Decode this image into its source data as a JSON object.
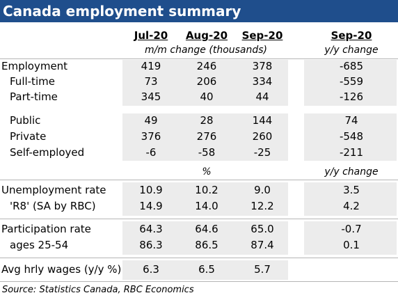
{
  "title": "Canada employment summary",
  "months": [
    "Jul-20",
    "Aug-20",
    "Sep-20"
  ],
  "yoy_month": "Sep-20",
  "mm_caption": "m/m change (thousands)",
  "yoy_caption": "y/y change",
  "pct_caption": "%",
  "yoy_caption2": "y/y change",
  "rows": [
    {
      "label": "Employment",
      "values": [
        "419",
        "246",
        "378"
      ],
      "yoy": "-685"
    },
    {
      "label": "Full-time",
      "values": [
        "73",
        "206",
        "334"
      ],
      "yoy": "-559"
    },
    {
      "label": "Part-time",
      "values": [
        "345",
        "40",
        "44"
      ],
      "yoy": "-126"
    },
    {
      "label": "Public",
      "values": [
        "49",
        "28",
        "144"
      ],
      "yoy": "74"
    },
    {
      "label": "Private",
      "values": [
        "376",
        "276",
        "260"
      ],
      "yoy": "-548"
    },
    {
      "label": "Self-employed",
      "values": [
        "-6",
        "-58",
        "-25"
      ],
      "yoy": "-211"
    },
    {
      "label": "Unemployment rate",
      "values": [
        "10.9",
        "10.2",
        "9.0"
      ],
      "yoy": "3.5"
    },
    {
      "label": "'R8' (SA by RBC)",
      "values": [
        "14.9",
        "14.0",
        "12.2"
      ],
      "yoy": "4.2"
    },
    {
      "label": "Participation rate",
      "values": [
        "64.3",
        "64.6",
        "65.0"
      ],
      "yoy": "-0.7"
    },
    {
      "label": "ages 25-54",
      "values": [
        "86.3",
        "86.5",
        "87.4"
      ],
      "yoy": "0.1"
    },
    {
      "label": "Avg hrly wages (y/y %)",
      "values": [
        "6.3",
        "6.5",
        "5.7"
      ],
      "yoy": ""
    }
  ],
  "source": "Source:  Statistics Canada, RBC Economics"
}
